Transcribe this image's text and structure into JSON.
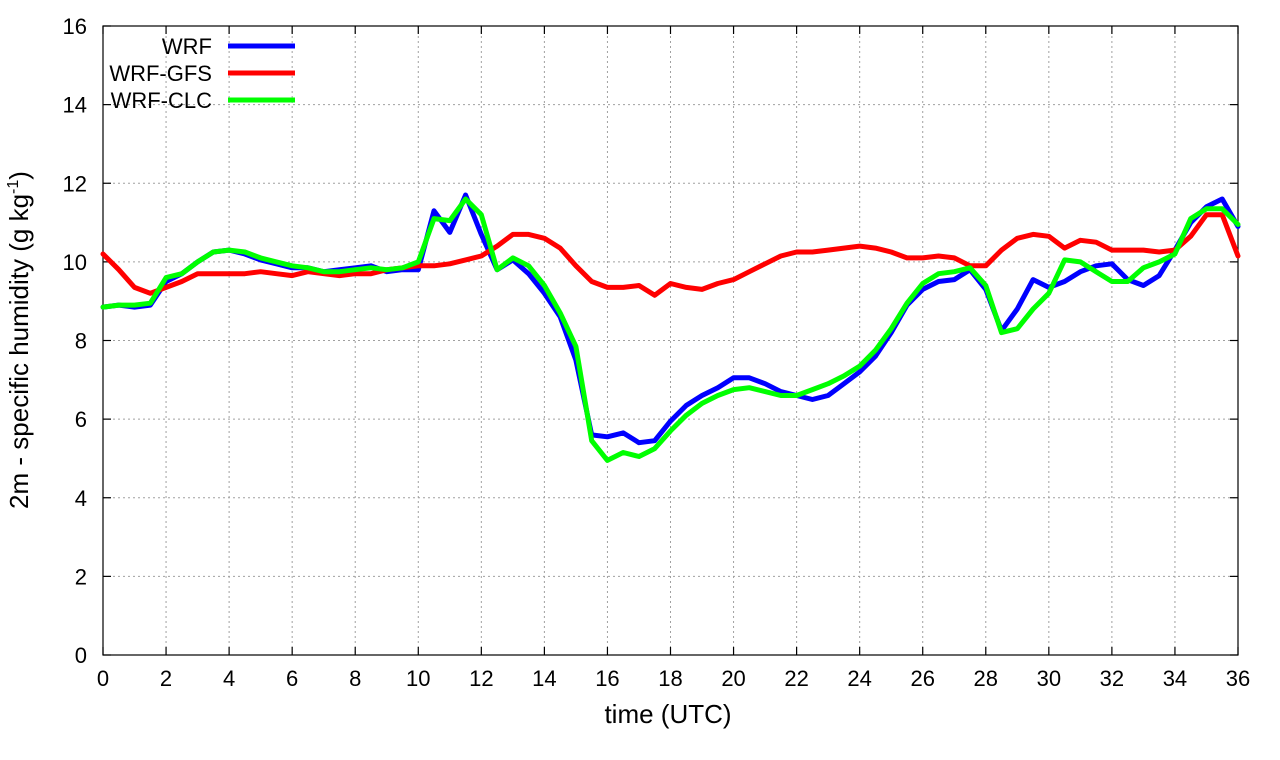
{
  "chart_data": {
    "type": "line",
    "title": "",
    "xlabel": "time (UTC)",
    "ylabel_main": "2m - specific humidity (g kg",
    "ylabel_sup": "-1",
    "ylabel_close": ")",
    "xlim": [
      0,
      36
    ],
    "ylim": [
      0,
      16
    ],
    "xticks": [
      0,
      2,
      4,
      6,
      8,
      10,
      12,
      14,
      16,
      18,
      20,
      22,
      24,
      26,
      28,
      30,
      32,
      34,
      36
    ],
    "yticks": [
      0,
      2,
      4,
      6,
      8,
      10,
      12,
      14,
      16
    ],
    "xtick_labels": [
      "0",
      "2",
      "4",
      "6",
      "8",
      "10",
      "12",
      "14",
      "16",
      "18",
      "20",
      "22",
      "24",
      "26",
      "28",
      "30",
      "32",
      "34",
      "36"
    ],
    "ytick_labels": [
      "0",
      "2",
      "4",
      "6",
      "8",
      "10",
      "12",
      "14",
      "16"
    ],
    "grid": true,
    "legend_position": "top-left",
    "series": [
      {
        "name": "WRF",
        "color": "#0000ff",
        "points": [
          [
            0,
            8.85
          ],
          [
            0.5,
            8.9
          ],
          [
            1,
            8.85
          ],
          [
            1.5,
            8.9
          ],
          [
            2,
            9.5
          ],
          [
            2.5,
            9.7
          ],
          [
            3,
            10.0
          ],
          [
            3.5,
            10.25
          ],
          [
            4,
            10.3
          ],
          [
            4.5,
            10.2
          ],
          [
            5,
            10.05
          ],
          [
            5.5,
            9.95
          ],
          [
            6,
            9.85
          ],
          [
            6.5,
            9.85
          ],
          [
            7,
            9.75
          ],
          [
            7.5,
            9.8
          ],
          [
            8,
            9.85
          ],
          [
            8.5,
            9.9
          ],
          [
            9,
            9.75
          ],
          [
            9.5,
            9.8
          ],
          [
            10,
            9.8
          ],
          [
            10.5,
            11.3
          ],
          [
            11,
            10.75
          ],
          [
            11.5,
            11.7
          ],
          [
            12,
            10.7
          ],
          [
            12.5,
            9.8
          ],
          [
            13,
            10.05
          ],
          [
            13.5,
            9.7
          ],
          [
            14,
            9.2
          ],
          [
            14.5,
            8.6
          ],
          [
            15,
            7.5
          ],
          [
            15.5,
            5.6
          ],
          [
            16,
            5.55
          ],
          [
            16.5,
            5.65
          ],
          [
            17,
            5.4
          ],
          [
            17.5,
            5.45
          ],
          [
            18,
            5.95
          ],
          [
            18.5,
            6.35
          ],
          [
            19,
            6.6
          ],
          [
            19.5,
            6.8
          ],
          [
            20,
            7.05
          ],
          [
            20.5,
            7.05
          ],
          [
            21,
            6.9
          ],
          [
            21.5,
            6.7
          ],
          [
            22,
            6.6
          ],
          [
            22.5,
            6.5
          ],
          [
            23,
            6.6
          ],
          [
            23.5,
            6.9
          ],
          [
            24,
            7.2
          ],
          [
            24.5,
            7.6
          ],
          [
            25,
            8.2
          ],
          [
            25.5,
            8.9
          ],
          [
            26,
            9.3
          ],
          [
            26.5,
            9.5
          ],
          [
            27,
            9.55
          ],
          [
            27.5,
            9.8
          ],
          [
            28,
            9.3
          ],
          [
            28.5,
            8.25
          ],
          [
            29,
            8.8
          ],
          [
            29.5,
            9.55
          ],
          [
            30,
            9.35
          ],
          [
            30.5,
            9.5
          ],
          [
            31,
            9.75
          ],
          [
            31.5,
            9.9
          ],
          [
            32,
            9.95
          ],
          [
            32.5,
            9.55
          ],
          [
            33,
            9.4
          ],
          [
            33.5,
            9.65
          ],
          [
            34,
            10.3
          ],
          [
            34.5,
            11.0
          ],
          [
            35,
            11.4
          ],
          [
            35.5,
            11.6
          ],
          [
            36,
            10.9
          ]
        ]
      },
      {
        "name": "WRF-GFS",
        "color": "#ff0000",
        "points": [
          [
            0,
            10.2
          ],
          [
            0.5,
            9.8
          ],
          [
            1,
            9.35
          ],
          [
            1.5,
            9.2
          ],
          [
            2,
            9.35
          ],
          [
            2.5,
            9.5
          ],
          [
            3,
            9.7
          ],
          [
            3.5,
            9.7
          ],
          [
            4,
            9.7
          ],
          [
            4.5,
            9.7
          ],
          [
            5,
            9.75
          ],
          [
            5.5,
            9.7
          ],
          [
            6,
            9.65
          ],
          [
            6.5,
            9.75
          ],
          [
            7,
            9.7
          ],
          [
            7.5,
            9.65
          ],
          [
            8,
            9.7
          ],
          [
            8.5,
            9.7
          ],
          [
            9,
            9.8
          ],
          [
            9.5,
            9.85
          ],
          [
            10,
            9.9
          ],
          [
            10.5,
            9.9
          ],
          [
            11,
            9.95
          ],
          [
            11.5,
            10.05
          ],
          [
            12,
            10.15
          ],
          [
            12.5,
            10.4
          ],
          [
            13,
            10.7
          ],
          [
            13.5,
            10.7
          ],
          [
            14,
            10.6
          ],
          [
            14.5,
            10.35
          ],
          [
            15,
            9.9
          ],
          [
            15.5,
            9.5
          ],
          [
            16,
            9.35
          ],
          [
            16.5,
            9.35
          ],
          [
            17,
            9.4
          ],
          [
            17.5,
            9.15
          ],
          [
            18,
            9.45
          ],
          [
            18.5,
            9.35
          ],
          [
            19,
            9.3
          ],
          [
            19.5,
            9.45
          ],
          [
            20,
            9.55
          ],
          [
            20.5,
            9.75
          ],
          [
            21,
            9.95
          ],
          [
            21.5,
            10.15
          ],
          [
            22,
            10.25
          ],
          [
            22.5,
            10.25
          ],
          [
            23,
            10.3
          ],
          [
            23.5,
            10.35
          ],
          [
            24,
            10.4
          ],
          [
            24.5,
            10.35
          ],
          [
            25,
            10.25
          ],
          [
            25.5,
            10.1
          ],
          [
            26,
            10.1
          ],
          [
            26.5,
            10.15
          ],
          [
            27,
            10.1
          ],
          [
            27.5,
            9.9
          ],
          [
            28,
            9.9
          ],
          [
            28.5,
            10.3
          ],
          [
            29,
            10.6
          ],
          [
            29.5,
            10.7
          ],
          [
            30,
            10.65
          ],
          [
            30.5,
            10.35
          ],
          [
            31,
            10.55
          ],
          [
            31.5,
            10.5
          ],
          [
            32,
            10.3
          ],
          [
            32.5,
            10.3
          ],
          [
            33,
            10.3
          ],
          [
            33.5,
            10.25
          ],
          [
            34,
            10.3
          ],
          [
            34.5,
            10.65
          ],
          [
            35,
            11.2
          ],
          [
            35.5,
            11.2
          ],
          [
            36,
            10.15
          ]
        ]
      },
      {
        "name": "WRF-CLC",
        "color": "#00ff00",
        "points": [
          [
            0,
            8.85
          ],
          [
            0.5,
            8.9
          ],
          [
            1,
            8.9
          ],
          [
            1.5,
            8.95
          ],
          [
            2,
            9.6
          ],
          [
            2.5,
            9.7
          ],
          [
            3,
            10.0
          ],
          [
            3.5,
            10.25
          ],
          [
            4,
            10.3
          ],
          [
            4.5,
            10.25
          ],
          [
            5,
            10.1
          ],
          [
            5.5,
            10.0
          ],
          [
            6,
            9.9
          ],
          [
            6.5,
            9.85
          ],
          [
            7,
            9.75
          ],
          [
            7.5,
            9.75
          ],
          [
            8,
            9.8
          ],
          [
            8.5,
            9.85
          ],
          [
            9,
            9.8
          ],
          [
            9.5,
            9.85
          ],
          [
            10,
            10.0
          ],
          [
            10.5,
            11.1
          ],
          [
            11,
            11.05
          ],
          [
            11.5,
            11.6
          ],
          [
            12,
            11.2
          ],
          [
            12.5,
            9.8
          ],
          [
            13,
            10.1
          ],
          [
            13.5,
            9.9
          ],
          [
            14,
            9.4
          ],
          [
            14.5,
            8.7
          ],
          [
            15,
            7.85
          ],
          [
            15.5,
            5.45
          ],
          [
            16,
            4.95
          ],
          [
            16.5,
            5.15
          ],
          [
            17,
            5.05
          ],
          [
            17.5,
            5.25
          ],
          [
            18,
            5.7
          ],
          [
            18.5,
            6.1
          ],
          [
            19,
            6.4
          ],
          [
            19.5,
            6.6
          ],
          [
            20,
            6.75
          ],
          [
            20.5,
            6.8
          ],
          [
            21,
            6.7
          ],
          [
            21.5,
            6.6
          ],
          [
            22,
            6.6
          ],
          [
            22.5,
            6.75
          ],
          [
            23,
            6.9
          ],
          [
            23.5,
            7.1
          ],
          [
            24,
            7.35
          ],
          [
            24.5,
            7.75
          ],
          [
            25,
            8.3
          ],
          [
            25.5,
            8.95
          ],
          [
            26,
            9.45
          ],
          [
            26.5,
            9.7
          ],
          [
            27,
            9.75
          ],
          [
            27.5,
            9.85
          ],
          [
            28,
            9.4
          ],
          [
            28.5,
            8.2
          ],
          [
            29,
            8.3
          ],
          [
            29.5,
            8.8
          ],
          [
            30,
            9.2
          ],
          [
            30.5,
            10.05
          ],
          [
            31,
            10.0
          ],
          [
            31.5,
            9.75
          ],
          [
            32,
            9.5
          ],
          [
            32.5,
            9.5
          ],
          [
            33,
            9.85
          ],
          [
            33.5,
            10.0
          ],
          [
            34,
            10.2
          ],
          [
            34.5,
            11.1
          ],
          [
            35,
            11.35
          ],
          [
            35.5,
            11.35
          ],
          [
            36,
            10.95
          ]
        ]
      }
    ]
  }
}
